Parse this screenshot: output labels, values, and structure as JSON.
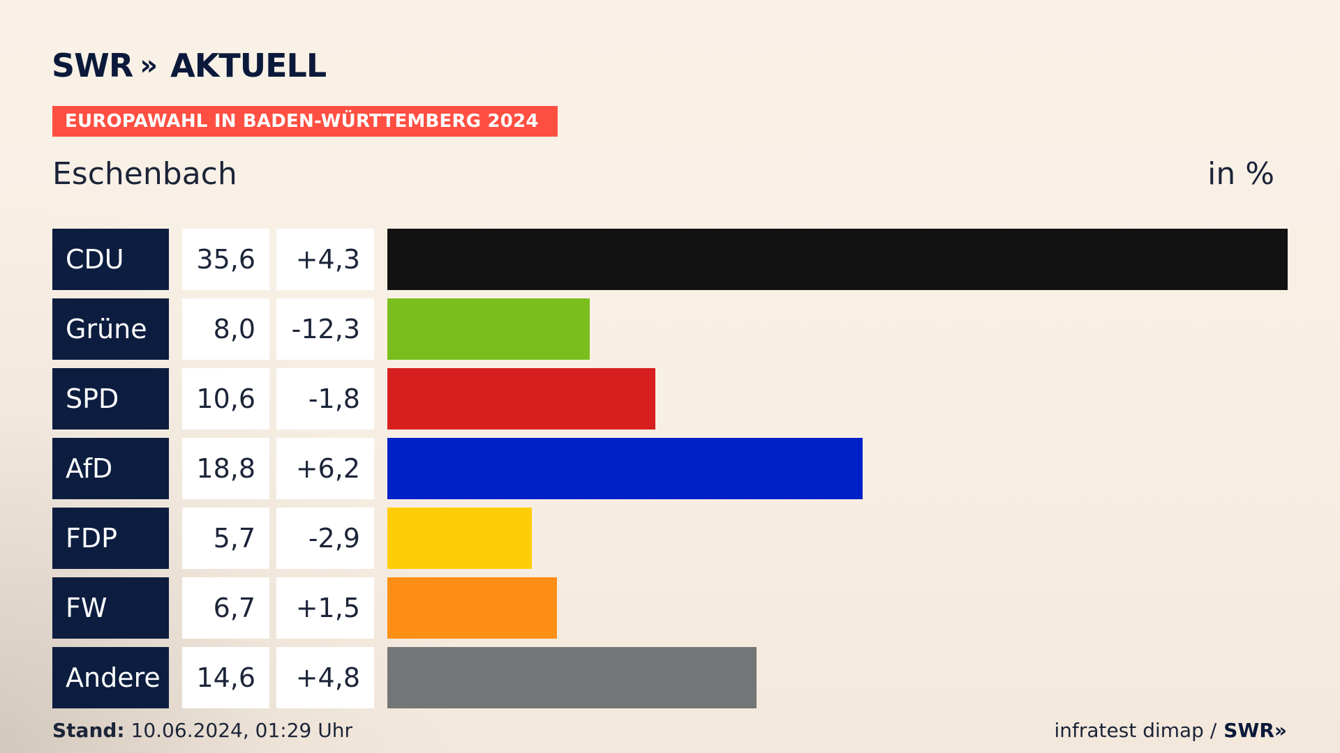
{
  "brand": {
    "logo_left": "SWR",
    "logo_chevrons": "»",
    "logo_right": "AKTUELL"
  },
  "banner": "EUROPAWAHL IN BADEN-WÜRTTEMBERG 2024",
  "subtitle": "Eschenbach",
  "unit": "in %",
  "footer": {
    "stand_label": "Stand:",
    "stand_value": "10.06.2024, 01:29 Uhr",
    "source": "infratest dimap /",
    "source_logo": "SWR»"
  },
  "chart_data": {
    "type": "bar",
    "orientation": "horizontal",
    "categories": [
      "CDU",
      "Grüne",
      "SPD",
      "AfD",
      "FDP",
      "FW",
      "Andere"
    ],
    "values": [
      35.6,
      8.0,
      10.6,
      18.8,
      5.7,
      6.7,
      14.6
    ],
    "value_labels": [
      "35,6",
      "8,0",
      "10,6",
      "18,8",
      "5,7",
      "6,7",
      "14,6"
    ],
    "diff_labels": [
      "+4,3",
      "-12,3",
      "-1,8",
      "+6,2",
      "-2,9",
      "+1,5",
      "+4,8"
    ],
    "colors": [
      "#121212",
      "#7abe1e",
      "#d71f1f",
      "#0020c8",
      "#ffcc08",
      "#fd8f16",
      "#747576"
    ],
    "xlim": [
      0,
      35.6
    ],
    "grid": false,
    "legend": "none"
  }
}
